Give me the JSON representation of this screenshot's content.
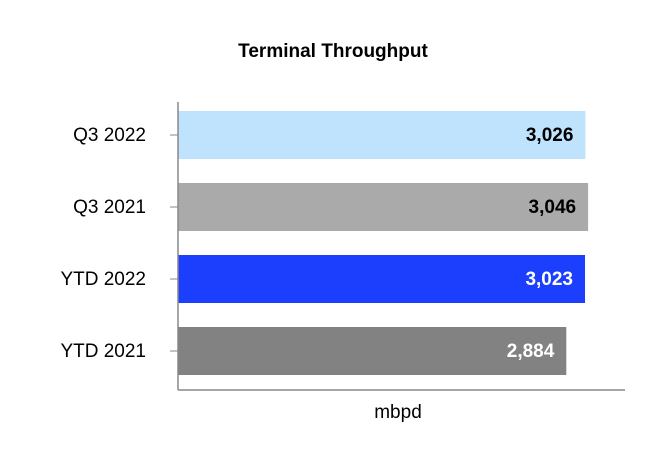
{
  "chart_data": {
    "type": "hbar",
    "title": "Terminal Throughput",
    "xlabel": "mbpd",
    "categories": [
      "Q3 2022",
      "Q3 2021",
      "YTD 2022",
      "YTD 2021"
    ],
    "values": [
      3026,
      3046,
      3023,
      2884
    ],
    "value_labels": [
      "3,026",
      "3,046",
      "3,023",
      "2,884"
    ],
    "colors": [
      "#bfe3fd",
      "#aaaaaa",
      "#1b3ffd",
      "#828282"
    ],
    "label_colors": [
      "#000000",
      "#000000",
      "#ffffff",
      "#ffffff"
    ],
    "xlim": [
      0,
      3320
    ]
  }
}
